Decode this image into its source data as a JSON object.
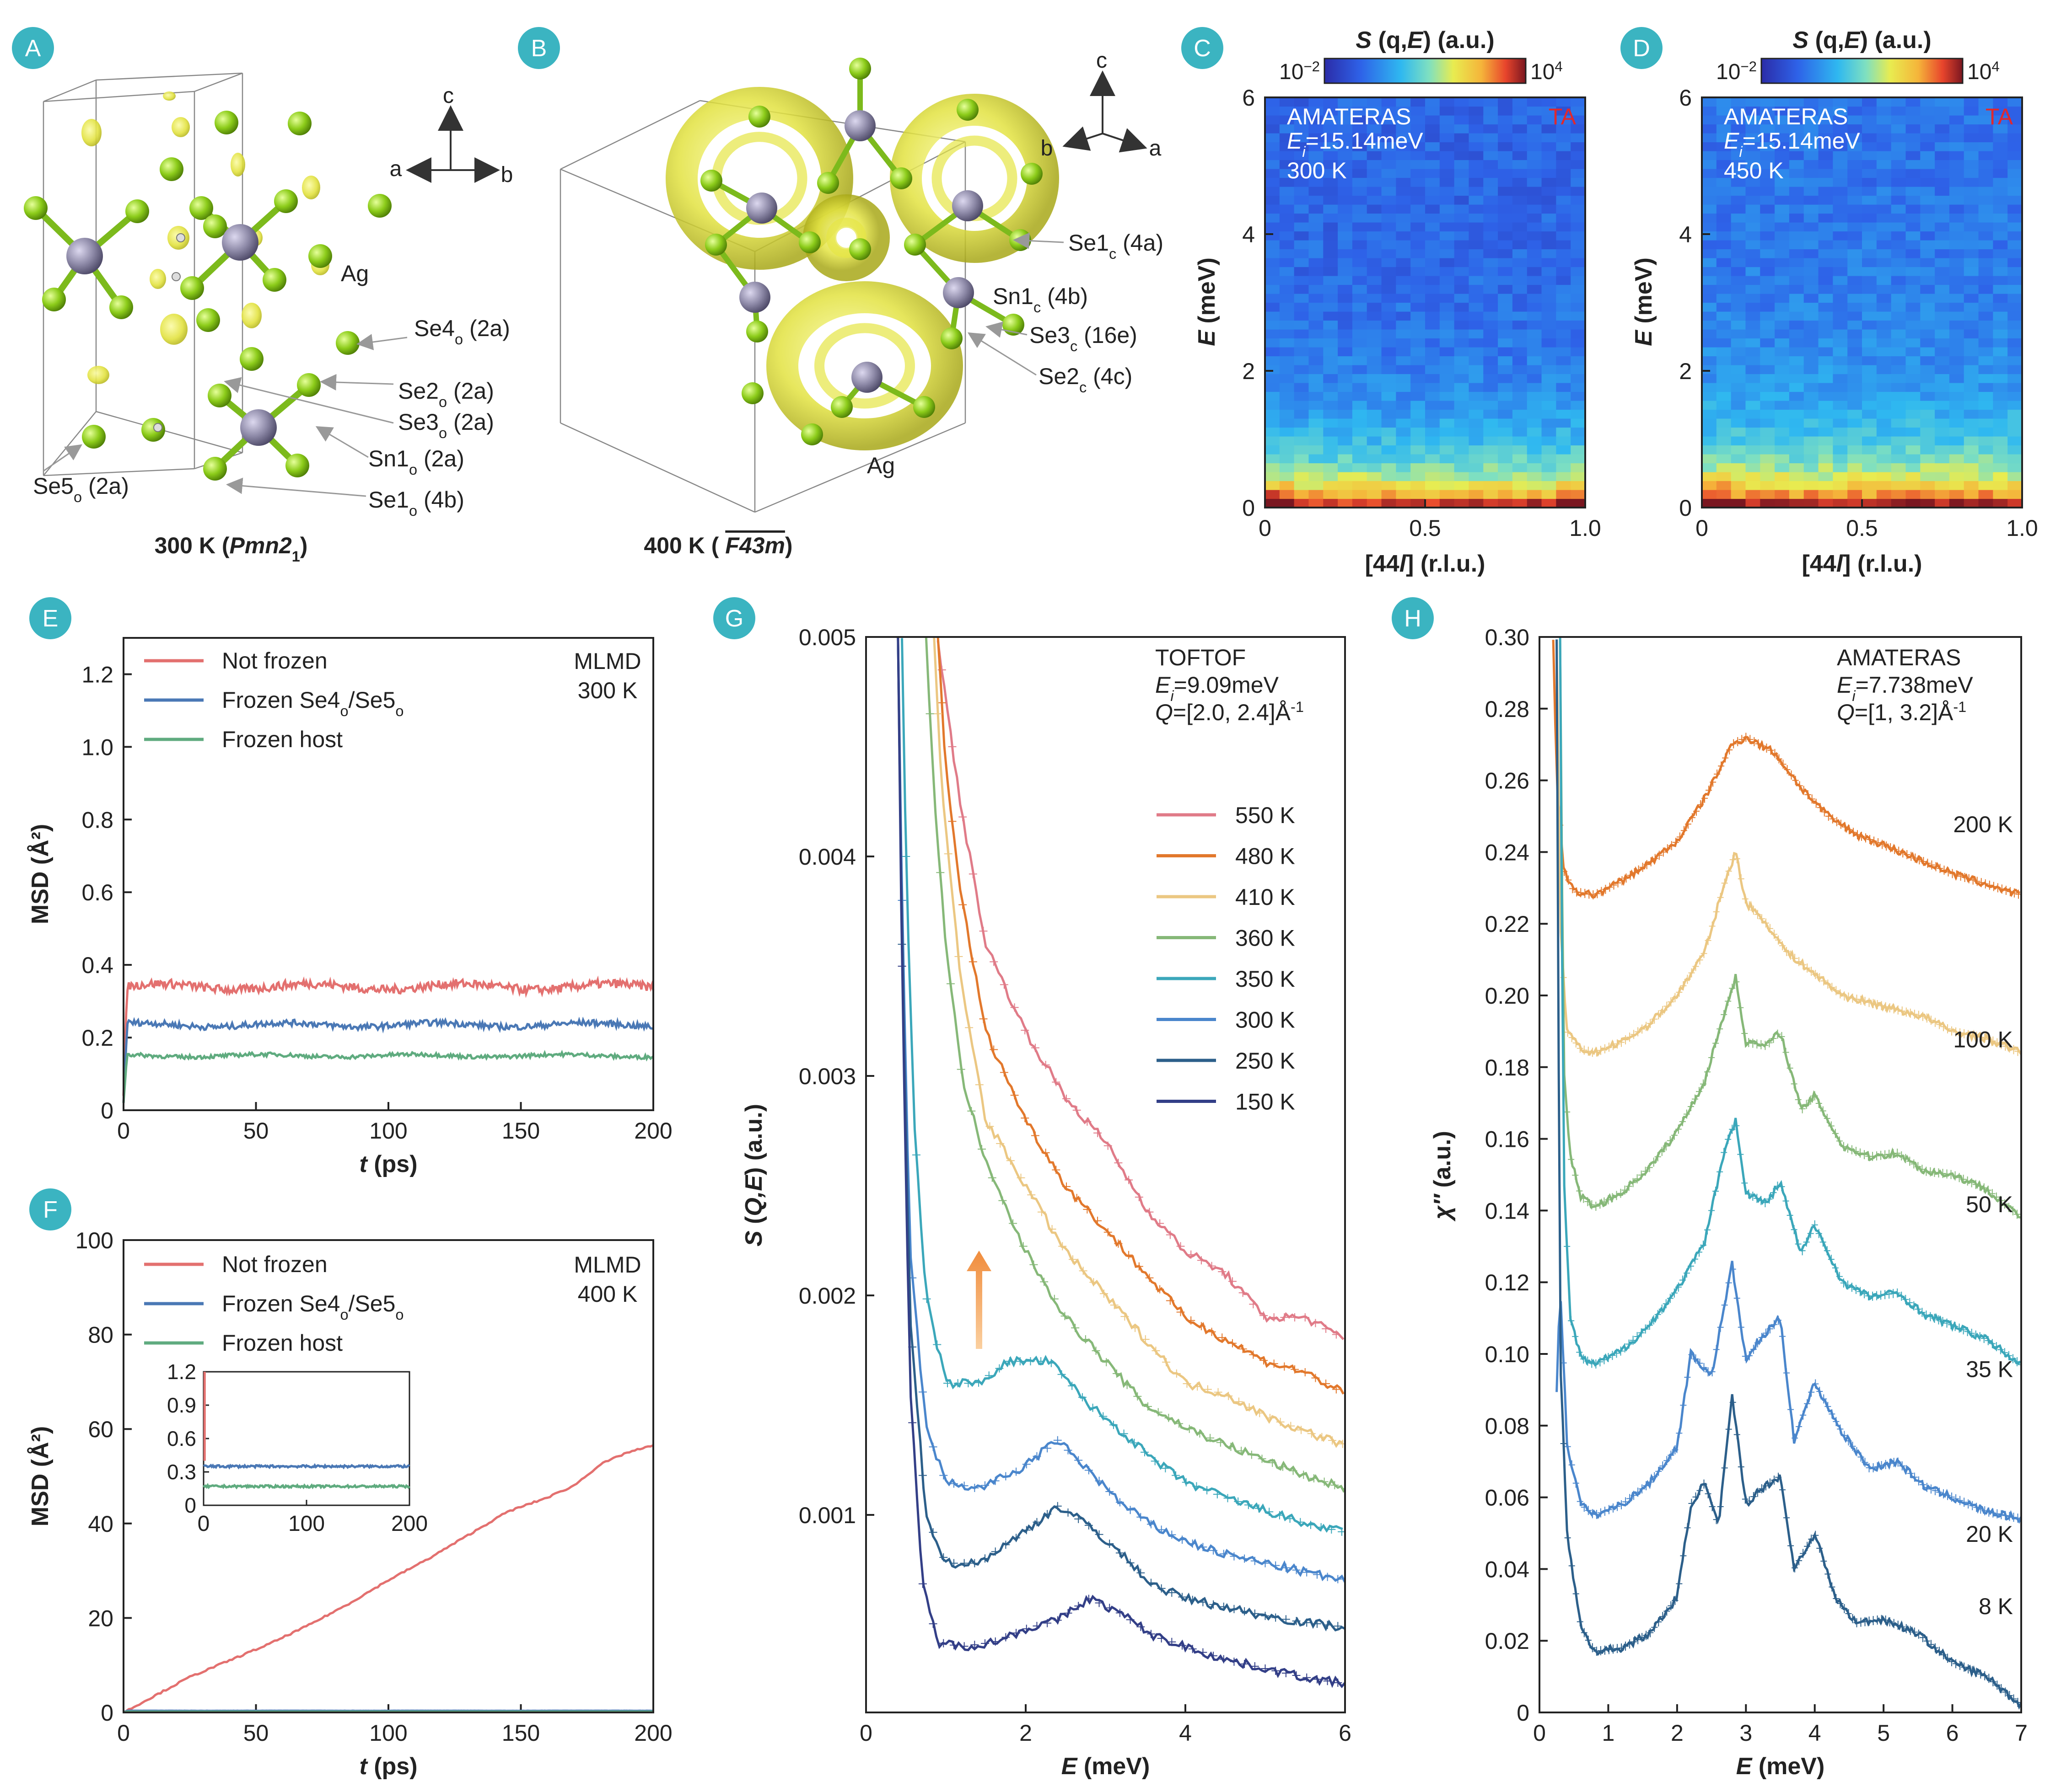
{
  "panels": {
    "A": {
      "letter": "A",
      "caption_prefix": "300 K (",
      "caption_group": "Pmn2",
      "caption_sub": "1",
      "caption_suffix": ")",
      "axes": {
        "c": "c",
        "a": "a",
        "b": "b"
      },
      "labels": [
        {
          "main": "Ag",
          "sub": "",
          "rest": ""
        },
        {
          "main": "Se4",
          "sub": "o",
          "rest": " (2a)"
        },
        {
          "main": "Se2",
          "sub": "o",
          "rest": " (2a)"
        },
        {
          "main": "Se3",
          "sub": "o",
          "rest": " (2a)"
        },
        {
          "main": "Sn1",
          "sub": "o",
          "rest": " (2a)"
        },
        {
          "main": "Se1",
          "sub": "o",
          "rest": " (4b)"
        },
        {
          "main": "Se5",
          "sub": "o",
          "rest": " (2a)"
        }
      ]
    },
    "B": {
      "letter": "B",
      "caption_prefix": "400 K ( ",
      "caption_group": "F43m",
      "caption_suffix": ")",
      "axes": {
        "c": "c",
        "a": "a",
        "b": "b"
      },
      "labels": [
        {
          "main": "Se1",
          "sub": "c",
          "rest": " (4a)"
        },
        {
          "main": "Sn1",
          "sub": "c",
          "rest": " (4b)"
        },
        {
          "main": "Se3",
          "sub": "c",
          "rest": " (16e)"
        },
        {
          "main": "Se2",
          "sub": "c",
          "rest": " (4c)"
        },
        {
          "main": "Ag",
          "sub": "",
          "rest": ""
        }
      ]
    },
    "C": {
      "letter": "C"
    },
    "D": {
      "letter": "D"
    },
    "E": {
      "letter": "E"
    },
    "F": {
      "letter": "F"
    },
    "G": {
      "letter": "G"
    },
    "H": {
      "letter": "H"
    }
  },
  "colors": {
    "badge": "#3bb4c1",
    "not_frozen": "#e3706f",
    "frozen_se": "#4a78b5",
    "frozen_host": "#5fab7f",
    "se_atom": "#8ccc1a",
    "sn_atom": "#8e8aa8",
    "isosurface": "#e6e645",
    "red_label": "#e0282e",
    "arrow": "#f08c3c"
  },
  "chart_data": [
    {
      "id": "C",
      "type": "heatmap",
      "title_main": "S",
      "title_rest": " (q,",
      "title_E": "E",
      "title_end": ") (a.u.)",
      "colorbar": {
        "min": "10",
        "min_exp": "−2",
        "max": "10",
        "max_exp": "4"
      },
      "annotations": {
        "instrument": "AMATERAS",
        "ei_main": "E",
        "ei_sub": "i",
        "ei_rest": "=15.14meV",
        "temp": "300 K",
        "mode": "TA"
      },
      "xlabel_main": "[44",
      "xlabel_it": "l",
      "xlabel_rest": "] (r.l.u.)",
      "ylabel_it": "E",
      "ylabel_rest": " (meV)",
      "xticks": [
        "0",
        "0.5",
        "1.0"
      ],
      "yticks": [
        "0",
        "2",
        "4",
        "6"
      ],
      "xlim": [
        0,
        1.0
      ],
      "ylim": [
        0,
        6
      ]
    },
    {
      "id": "D",
      "type": "heatmap",
      "title_main": "S",
      "title_rest": " (q,",
      "title_E": "E",
      "title_end": ") (a.u.)",
      "colorbar": {
        "min": "10",
        "min_exp": "−2",
        "max": "10",
        "max_exp": "4"
      },
      "annotations": {
        "instrument": "AMATERAS",
        "ei_main": "E",
        "ei_sub": "i",
        "ei_rest": "=15.14meV",
        "temp": "450 K",
        "mode": "TA"
      },
      "xlabel_main": "[44",
      "xlabel_it": "l",
      "xlabel_rest": "] (r.l.u.)",
      "ylabel_it": "E",
      "ylabel_rest": " (meV)",
      "xticks": [
        "0",
        "0.5",
        "1.0"
      ],
      "yticks": [
        "0",
        "2",
        "4",
        "6"
      ],
      "xlim": [
        0,
        1.0
      ],
      "ylim": [
        0,
        6
      ]
    },
    {
      "id": "E",
      "type": "line",
      "xlabel_it": "t",
      "xlabel_rest": " (ps)",
      "ylabel": "MSD (Å²)",
      "xlim": [
        0,
        200
      ],
      "ylim": [
        0,
        1.3
      ],
      "xticks": [
        "0",
        "50",
        "100",
        "150",
        "200"
      ],
      "yticks": [
        "0",
        "0.2",
        "0.4",
        "0.6",
        "0.8",
        "1.0",
        "1.2"
      ],
      "annotation": [
        "MLMD",
        "300 K"
      ],
      "series": [
        {
          "legend_main": "Not frozen",
          "legend_sub": "",
          "legend_mid": "",
          "legend_sub2": "",
          "mean": 0.34
        },
        {
          "legend_main": "Frozen Se4",
          "legend_sub": "o",
          "legend_mid": "/Se5",
          "legend_sub2": "o",
          "mean": 0.235
        },
        {
          "legend_main": "Frozen host",
          "legend_sub": "",
          "legend_mid": "",
          "legend_sub2": "",
          "mean": 0.15
        }
      ]
    },
    {
      "id": "F",
      "type": "line",
      "xlabel_it": "t",
      "xlabel_rest": " (ps)",
      "ylabel": "MSD (Å²)",
      "xlim": [
        0,
        200
      ],
      "ylim": [
        0,
        100
      ],
      "xticks": [
        "0",
        "50",
        "100",
        "150",
        "200"
      ],
      "yticks": [
        "0",
        "20",
        "40",
        "60",
        "80",
        "100"
      ],
      "annotation": [
        "MLMD",
        "400 K"
      ],
      "series": [
        {
          "legend_main": "Not frozen",
          "legend_sub": "",
          "legend_mid": "",
          "legend_sub2": "",
          "x": [
            0,
            10,
            25,
            40,
            55,
            70,
            85,
            100,
            115,
            130,
            145,
            160,
            170,
            180,
            190,
            200
          ],
          "y": [
            0,
            3,
            7.5,
            11,
            14.5,
            18.5,
            23,
            28,
            32.5,
            37.5,
            42.5,
            45.5,
            48,
            52.5,
            55,
            56.5
          ]
        },
        {
          "legend_main": "Frozen Se4",
          "legend_sub": "o",
          "legend_mid": "/Se5",
          "legend_sub2": "o",
          "mean": 0.35
        },
        {
          "legend_main": "Frozen host",
          "legend_sub": "",
          "legend_mid": "",
          "legend_sub2": "",
          "mean": 0.17
        }
      ],
      "inset": {
        "xlim": [
          0,
          200
        ],
        "ylim": [
          0,
          1.2
        ],
        "xticks": [
          "0",
          "100",
          "200"
        ],
        "yticks": [
          "0",
          "0.3",
          "0.6",
          "0.9",
          "1.2"
        ],
        "se_mean": 0.35,
        "host_mean": 0.17
      }
    },
    {
      "id": "G",
      "type": "line",
      "xlabel_it": "E",
      "xlabel_rest": " (meV)",
      "ylabel_main": "S",
      "ylabel_mid": " (",
      "ylabel_it": "Q,E",
      "ylabel_end": ") (a.u.)",
      "xlim": [
        0,
        6
      ],
      "ylim": [
        0.0001,
        0.005
      ],
      "xticks": [
        "0",
        "2",
        "4",
        "6"
      ],
      "yticks": [
        "0.001",
        "0.002",
        "0.003",
        "0.004",
        "0.005"
      ],
      "annotation": {
        "instrument": "TOFTOF",
        "ei_main": "E",
        "ei_sub": "i",
        "ei_rest": "=9.09meV",
        "q_main": "Q",
        "q_rest": "=[2.0, 2.4]Å",
        "q_exp": "-1"
      },
      "series": [
        {
          "name": "550 K",
          "color": "#e07b88",
          "x": [
            0.9,
            1.0,
            1.2,
            1.5,
            2.0,
            2.5,
            3.0,
            3.5,
            4.0,
            4.5,
            5.0,
            5.5,
            6.0
          ],
          "y": [
            0.005,
            0.0047,
            0.0042,
            0.0036,
            0.0032,
            0.0029,
            0.0027,
            0.0024,
            0.0022,
            0.0021,
            0.0019,
            0.0019,
            0.0018
          ]
        },
        {
          "name": "480 K",
          "color": "#e2782c",
          "x": [
            0.9,
            1.0,
            1.2,
            1.5,
            2.0,
            2.5,
            3.0,
            3.5,
            4.0,
            4.5,
            5.0,
            5.5,
            6.0
          ],
          "y": [
            0.005,
            0.0044,
            0.0038,
            0.0032,
            0.0028,
            0.0025,
            0.0023,
            0.0021,
            0.0019,
            0.0018,
            0.0017,
            0.00165,
            0.00155
          ]
        },
        {
          "name": "410 K",
          "color": "#ebc782",
          "x": [
            0.85,
            0.95,
            1.2,
            1.5,
            2.0,
            2.5,
            3.0,
            3.5,
            4.0,
            4.5,
            5.0,
            5.5,
            6.0
          ],
          "y": [
            0.005,
            0.0043,
            0.0034,
            0.0028,
            0.0025,
            0.0022,
            0.002,
            0.0018,
            0.0016,
            0.00155,
            0.00145,
            0.00138,
            0.00132
          ]
        },
        {
          "name": "360 K",
          "color": "#86b878",
          "x": [
            0.75,
            0.85,
            1.0,
            1.2,
            1.5,
            2.0,
            2.5,
            3.0,
            3.5,
            4.0,
            4.5,
            5.0,
            5.5,
            6.0
          ],
          "y": [
            0.005,
            0.0043,
            0.0036,
            0.003,
            0.0026,
            0.0022,
            0.0019,
            0.0017,
            0.0015,
            0.0014,
            0.00132,
            0.00125,
            0.00118,
            0.00112
          ]
        },
        {
          "name": "350 K",
          "color": "#3ba7ba",
          "x": [
            0.45,
            0.5,
            0.6,
            0.75,
            1.0,
            1.4,
            1.8,
            2.3,
            2.8,
            3.2,
            3.6,
            4.0,
            4.5,
            5.0,
            5.5,
            6.0
          ],
          "y": [
            0.005,
            0.004,
            0.0028,
            0.002,
            0.0016,
            0.0016,
            0.0017,
            0.0017,
            0.0015,
            0.00138,
            0.00125,
            0.00115,
            0.00108,
            0.00102,
            0.00096,
            0.00092
          ]
        },
        {
          "name": "300 K",
          "color": "#4a86cc",
          "x": [
            0.4,
            0.45,
            0.55,
            0.75,
            1.0,
            1.4,
            1.9,
            2.4,
            2.8,
            3.2,
            3.6,
            4.0,
            4.5,
            5.0,
            5.5,
            6.0
          ],
          "y": [
            0.005,
            0.0038,
            0.0022,
            0.0014,
            0.00115,
            0.00112,
            0.0012,
            0.00134,
            0.0012,
            0.00105,
            0.00095,
            0.00088,
            0.00082,
            0.00078,
            0.00074,
            0.0007
          ]
        },
        {
          "name": "250 K",
          "color": "#2c5f8a",
          "x": [
            0.4,
            0.45,
            0.55,
            0.75,
            1.0,
            1.4,
            1.9,
            2.4,
            2.8,
            3.2,
            3.6,
            4.0,
            4.5,
            5.0,
            5.5,
            6.0
          ],
          "y": [
            0.005,
            0.0036,
            0.0019,
            0.001,
            0.00078,
            0.00078,
            0.0009,
            0.00104,
            0.00095,
            0.00082,
            0.00068,
            0.00062,
            0.00058,
            0.00054,
            0.00051,
            0.00049
          ]
        },
        {
          "name": "150 K",
          "color": "#333f87",
          "x": [
            0.4,
            0.45,
            0.55,
            0.7,
            0.9,
            1.2,
            1.6,
            2.0,
            2.4,
            2.8,
            3.2,
            3.6,
            4.0,
            4.5,
            5.0,
            5.5,
            6.0
          ],
          "y": [
            0.005,
            0.0035,
            0.0016,
            0.0007,
            0.00042,
            0.0004,
            0.00042,
            0.00048,
            0.00052,
            0.00062,
            0.00055,
            0.00045,
            0.0004,
            0.00034,
            0.0003,
            0.00026,
            0.00023
          ]
        }
      ]
    },
    {
      "id": "H",
      "type": "line",
      "xlabel_it": "E",
      "xlabel_rest": " (meV)",
      "ylabel_it": "χ″",
      "ylabel_rest": " (a.u.)",
      "xlim": [
        0,
        7
      ],
      "ylim": [
        0,
        0.3
      ],
      "xticks": [
        "0",
        "1",
        "2",
        "3",
        "4",
        "5",
        "6",
        "7"
      ],
      "yticks": [
        "0",
        "0.02",
        "0.04",
        "0.06",
        "0.08",
        "0.10",
        "0.12",
        "0.14",
        "0.16",
        "0.18",
        "0.20",
        "0.22",
        "0.24",
        "0.26",
        "0.28",
        "0.30"
      ],
      "annotation": {
        "instrument": "AMATERAS",
        "ei_main": "E",
        "ei_sub": "i",
        "ei_rest": "=7.738meV",
        "q_main": "Q",
        "q_rest": "=[1, 3.2]Å",
        "q_exp": "-1"
      },
      "series": [
        {
          "name": "200 K",
          "color": "#e2782c",
          "x": [
            0.2,
            0.25,
            0.35,
            0.5,
            0.8,
            1.2,
            1.6,
            2.0,
            2.4,
            2.8,
            3.0,
            3.4,
            3.8,
            4.2,
            4.6,
            5.0,
            5.5,
            6.0,
            6.5,
            7.0
          ],
          "y": [
            0.3,
            0.26,
            0.235,
            0.229,
            0.228,
            0.232,
            0.237,
            0.243,
            0.255,
            0.27,
            0.272,
            0.268,
            0.258,
            0.25,
            0.245,
            0.242,
            0.238,
            0.234,
            0.231,
            0.228
          ]
        },
        {
          "name": "100 K",
          "color": "#ebc782",
          "x": [
            0.25,
            0.3,
            0.4,
            0.6,
            0.8,
            1.2,
            1.6,
            2.0,
            2.4,
            2.7,
            2.85,
            3.0,
            3.3,
            3.6,
            4.0,
            4.4,
            4.8,
            5.2,
            5.6,
            6.0,
            6.5,
            7.0
          ],
          "y": [
            0.3,
            0.22,
            0.19,
            0.185,
            0.184,
            0.187,
            0.192,
            0.2,
            0.212,
            0.232,
            0.24,
            0.226,
            0.22,
            0.212,
            0.206,
            0.2,
            0.198,
            0.196,
            0.194,
            0.19,
            0.188,
            0.184
          ]
        },
        {
          "name": "50 K",
          "color": "#86b878",
          "x": [
            0.3,
            0.35,
            0.45,
            0.6,
            0.8,
            1.2,
            1.6,
            2.0,
            2.4,
            2.7,
            2.85,
            3.0,
            3.3,
            3.5,
            3.8,
            4.0,
            4.4,
            4.8,
            5.2,
            5.6,
            6.0,
            6.5,
            7.0
          ],
          "y": [
            0.3,
            0.18,
            0.155,
            0.144,
            0.141,
            0.145,
            0.152,
            0.162,
            0.176,
            0.196,
            0.205,
            0.187,
            0.186,
            0.19,
            0.168,
            0.172,
            0.158,
            0.155,
            0.156,
            0.151,
            0.15,
            0.146,
            0.138
          ]
        },
        {
          "name": "35 K",
          "color": "#3ba7ba",
          "x": [
            0.3,
            0.35,
            0.45,
            0.6,
            0.8,
            1.2,
            1.6,
            2.0,
            2.4,
            2.7,
            2.85,
            3.0,
            3.3,
            3.5,
            3.8,
            4.0,
            4.4,
            4.8,
            5.2,
            5.6,
            6.0,
            6.5,
            7.0
          ],
          "y": [
            0.3,
            0.15,
            0.11,
            0.099,
            0.097,
            0.101,
            0.108,
            0.118,
            0.131,
            0.158,
            0.165,
            0.145,
            0.142,
            0.148,
            0.128,
            0.136,
            0.12,
            0.116,
            0.117,
            0.111,
            0.108,
            0.104,
            0.097
          ]
        },
        {
          "name": "20 K",
          "color": "#4a86cc",
          "x": [
            0.25,
            0.3,
            0.4,
            0.6,
            0.8,
            1.2,
            1.6,
            2.0,
            2.2,
            2.5,
            2.8,
            3.0,
            3.2,
            3.5,
            3.7,
            4.0,
            4.4,
            4.8,
            5.2,
            5.6,
            6.0,
            6.5,
            7.0
          ],
          "y": [
            0.09,
            0.12,
            0.075,
            0.058,
            0.055,
            0.058,
            0.064,
            0.074,
            0.1,
            0.094,
            0.125,
            0.098,
            0.104,
            0.11,
            0.076,
            0.092,
            0.078,
            0.068,
            0.07,
            0.063,
            0.06,
            0.056,
            0.054
          ]
        },
        {
          "name": "8 K",
          "color": "#2c5f8a",
          "x": [
            0.25,
            0.3,
            0.4,
            0.6,
            0.8,
            1.2,
            1.6,
            2.0,
            2.2,
            2.4,
            2.6,
            2.8,
            3.0,
            3.2,
            3.5,
            3.7,
            4.0,
            4.3,
            4.6,
            5.0,
            5.5,
            6.0,
            6.5,
            7.0
          ],
          "y": [
            0.3,
            0.1,
            0.05,
            0.024,
            0.017,
            0.018,
            0.022,
            0.032,
            0.058,
            0.064,
            0.052,
            0.088,
            0.058,
            0.062,
            0.066,
            0.04,
            0.05,
            0.032,
            0.025,
            0.026,
            0.022,
            0.014,
            0.01,
            0.002
          ]
        }
      ]
    }
  ]
}
